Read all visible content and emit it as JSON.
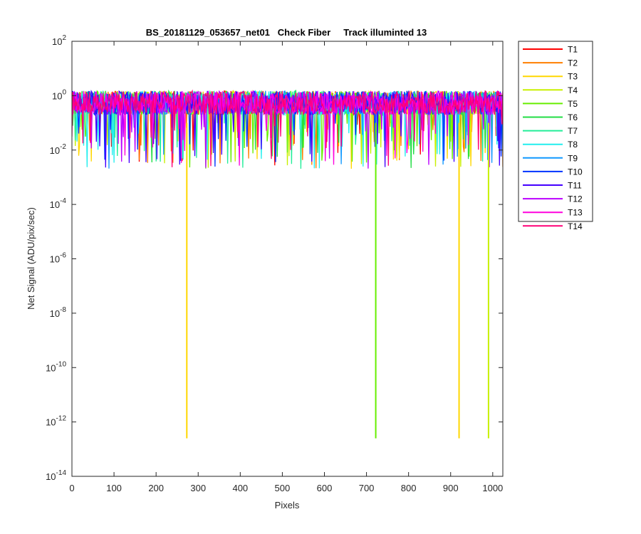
{
  "chart_data": {
    "type": "line",
    "title": "BS_20181129_053657_net01   Check Fiber     Track illuminted 13",
    "xlabel": "Pixels",
    "ylabel": "Net Signal (ADU/pix/sec)",
    "xlim": [
      0,
      1024
    ],
    "ylim": [
      1e-14,
      100
    ],
    "yscale": "log",
    "xticks": [
      0,
      100,
      200,
      300,
      400,
      500,
      600,
      700,
      800,
      900,
      1000
    ],
    "yticks": [
      {
        "base": "10",
        "exp": "2",
        "value": 100
      },
      {
        "base": "10",
        "exp": "0",
        "value": 1
      },
      {
        "base": "10",
        "exp": "-2",
        "value": 0.01
      },
      {
        "base": "10",
        "exp": "-4",
        "value": 0.0001
      },
      {
        "base": "10",
        "exp": "-6",
        "value": 1e-06
      },
      {
        "base": "10",
        "exp": "-8",
        "value": 1e-08
      },
      {
        "base": "10",
        "exp": "-10",
        "value": 1e-10
      },
      {
        "base": "10",
        "exp": "-12",
        "value": 1e-12
      },
      {
        "base": "10",
        "exp": "-14",
        "value": 1e-14
      }
    ],
    "grid": false,
    "legend": "outside-right",
    "series": [
      {
        "name": "T1",
        "color": "#ff0000"
      },
      {
        "name": "T2",
        "color": "#ff7f00"
      },
      {
        "name": "T3",
        "color": "#ffd700"
      },
      {
        "name": "T4",
        "color": "#c8f000"
      },
      {
        "name": "T5",
        "color": "#66ee00"
      },
      {
        "name": "T6",
        "color": "#22dd44"
      },
      {
        "name": "T7",
        "color": "#22ee99"
      },
      {
        "name": "T8",
        "color": "#22eeee"
      },
      {
        "name": "T9",
        "color": "#1199ff"
      },
      {
        "name": "T10",
        "color": "#0033ff"
      },
      {
        "name": "T11",
        "color": "#4400ff"
      },
      {
        "name": "T12",
        "color": "#bb00ff"
      },
      {
        "name": "T13",
        "color": "#ff00dd"
      },
      {
        "name": "T14",
        "color": "#ff0077"
      }
    ],
    "noise_band": {
      "typical_min": 0.1,
      "typical_max": 1.5,
      "dip_min": 0.002
    },
    "deep_dips": [
      {
        "series": "T3",
        "x": 273,
        "y": 2.5e-13
      },
      {
        "series": "T5",
        "x": 722,
        "y": 2.5e-13
      },
      {
        "series": "T3",
        "x": 920,
        "y": 2.5e-13
      },
      {
        "series": "T4",
        "x": 990,
        "y": 2.5e-13
      }
    ]
  }
}
